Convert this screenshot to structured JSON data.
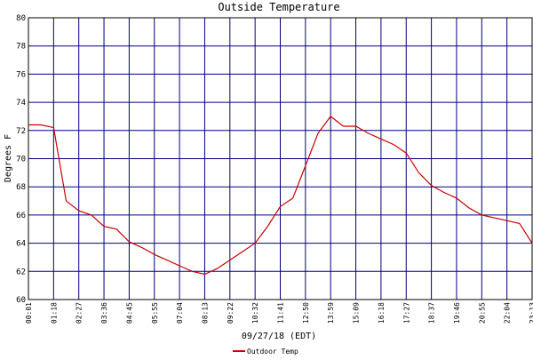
{
  "chart_data": {
    "type": "line",
    "title": "Outside Temperature",
    "x_label": "09/27/18 (EDT)",
    "y_label": "Degrees F",
    "categories": [
      "00:01",
      null,
      "01:18",
      null,
      "02:27",
      null,
      "03:36",
      null,
      "04:45",
      null,
      "05:55",
      null,
      "07:04",
      null,
      "08:13",
      null,
      "09:22",
      null,
      "10:32",
      null,
      "11:41",
      null,
      "12:50",
      null,
      "13:59",
      null,
      "15:09",
      null,
      "16:18",
      null,
      "17:27",
      null,
      "18:37",
      null,
      "19:46",
      null,
      "20:55",
      null,
      "22:04",
      null,
      "23:13"
    ],
    "series": [
      {
        "name": "Outdoor Temp",
        "color": "#cc0000",
        "values": [
          72.4,
          72.4,
          72.2,
          67.0,
          66.3,
          66.0,
          65.2,
          65.0,
          64.1,
          63.7,
          63.2,
          62.8,
          62.4,
          62.0,
          61.8,
          62.2,
          62.8,
          63.4,
          64.0,
          65.2,
          66.6,
          67.2,
          69.5,
          71.8,
          73.0,
          72.3,
          72.3,
          71.8,
          71.4,
          71.0,
          70.4,
          69.0,
          68.1,
          67.6,
          67.2,
          66.5,
          66.0,
          65.8,
          65.6,
          65.4,
          64.0
        ]
      }
    ],
    "ylim": [
      60,
      80
    ],
    "yticks": [
      60,
      62,
      64,
      66,
      68,
      70,
      72,
      74,
      76,
      78,
      80
    ],
    "grid": true,
    "grid_color": "#000080",
    "legend": "bottom"
  }
}
